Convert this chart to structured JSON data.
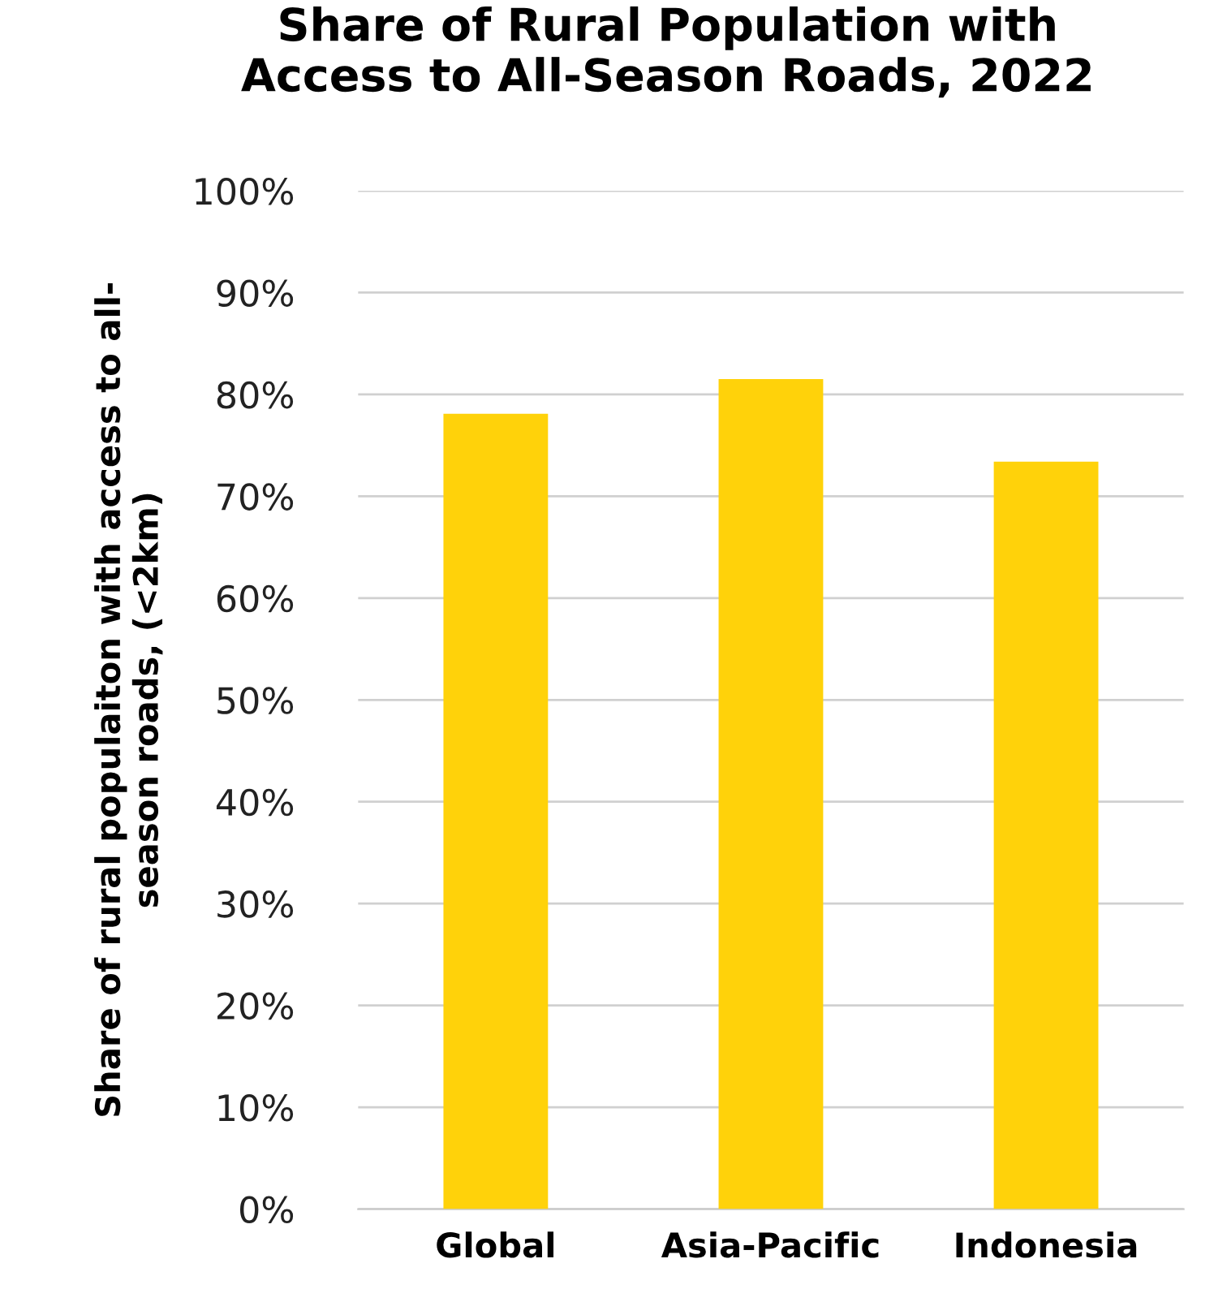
{
  "chart_data": {
    "type": "bar",
    "title": "Share of Rural Population with\nAccess to All-Season Roads, 2022",
    "ylabel": "Share of rural populaiton with access to all-\nseason roads, (<2km)",
    "categories": [
      "Global",
      "Asia-Pacific",
      "Indonesia"
    ],
    "values": [
      78.1,
      81.5,
      73.4
    ],
    "color": "#ffd20a",
    "ylim": [
      0,
      100
    ],
    "yticks": [
      {
        "value": 0,
        "label": "0%"
      },
      {
        "value": 10,
        "label": "10%"
      },
      {
        "value": 20,
        "label": "20%"
      },
      {
        "value": 30,
        "label": "30%"
      },
      {
        "value": 40,
        "label": "40%"
      },
      {
        "value": 50,
        "label": "50%"
      },
      {
        "value": 60,
        "label": "60%"
      },
      {
        "value": 70,
        "label": "70%"
      },
      {
        "value": 80,
        "label": "80%"
      },
      {
        "value": 90,
        "label": "90%"
      },
      {
        "value": 100,
        "label": "100%"
      }
    ],
    "grid": "y"
  }
}
